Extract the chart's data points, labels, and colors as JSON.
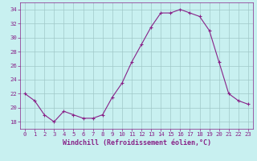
{
  "x": [
    0,
    1,
    2,
    3,
    4,
    5,
    6,
    7,
    8,
    9,
    10,
    11,
    12,
    13,
    14,
    15,
    16,
    17,
    18,
    19,
    20,
    21,
    22,
    23
  ],
  "y": [
    22,
    21,
    19,
    18,
    19.5,
    19,
    18.5,
    18.5,
    19,
    21.5,
    23.5,
    26.5,
    29,
    31.5,
    33.5,
    33.5,
    34,
    33.5,
    33,
    31,
    26.5,
    22,
    21,
    20.5
  ],
  "line_color": "#882288",
  "marker": "+",
  "marker_color": "#882288",
  "bg_color": "#c8f0f0",
  "grid_color": "#a0c8c8",
  "xlabel": "Windchill (Refroidissement éolien,°C)",
  "xlabel_color": "#882288",
  "tick_color": "#882288",
  "ylim": [
    17,
    35
  ],
  "xlim": [
    -0.5,
    23.5
  ],
  "yticks": [
    18,
    20,
    22,
    24,
    26,
    28,
    30,
    32,
    34
  ],
  "xtick_labels": [
    "0",
    "1",
    "2",
    "3",
    "4",
    "5",
    "6",
    "7",
    "8",
    "9",
    "10",
    "11",
    "12",
    "13",
    "14",
    "15",
    "16",
    "17",
    "18",
    "19",
    "20",
    "21",
    "22",
    "23"
  ],
  "font_family": "monospace",
  "xlabel_fontsize": 6.0,
  "tick_fontsize": 5.2,
  "linewidth": 0.8,
  "markersize": 3.5,
  "markeredgewidth": 0.8
}
